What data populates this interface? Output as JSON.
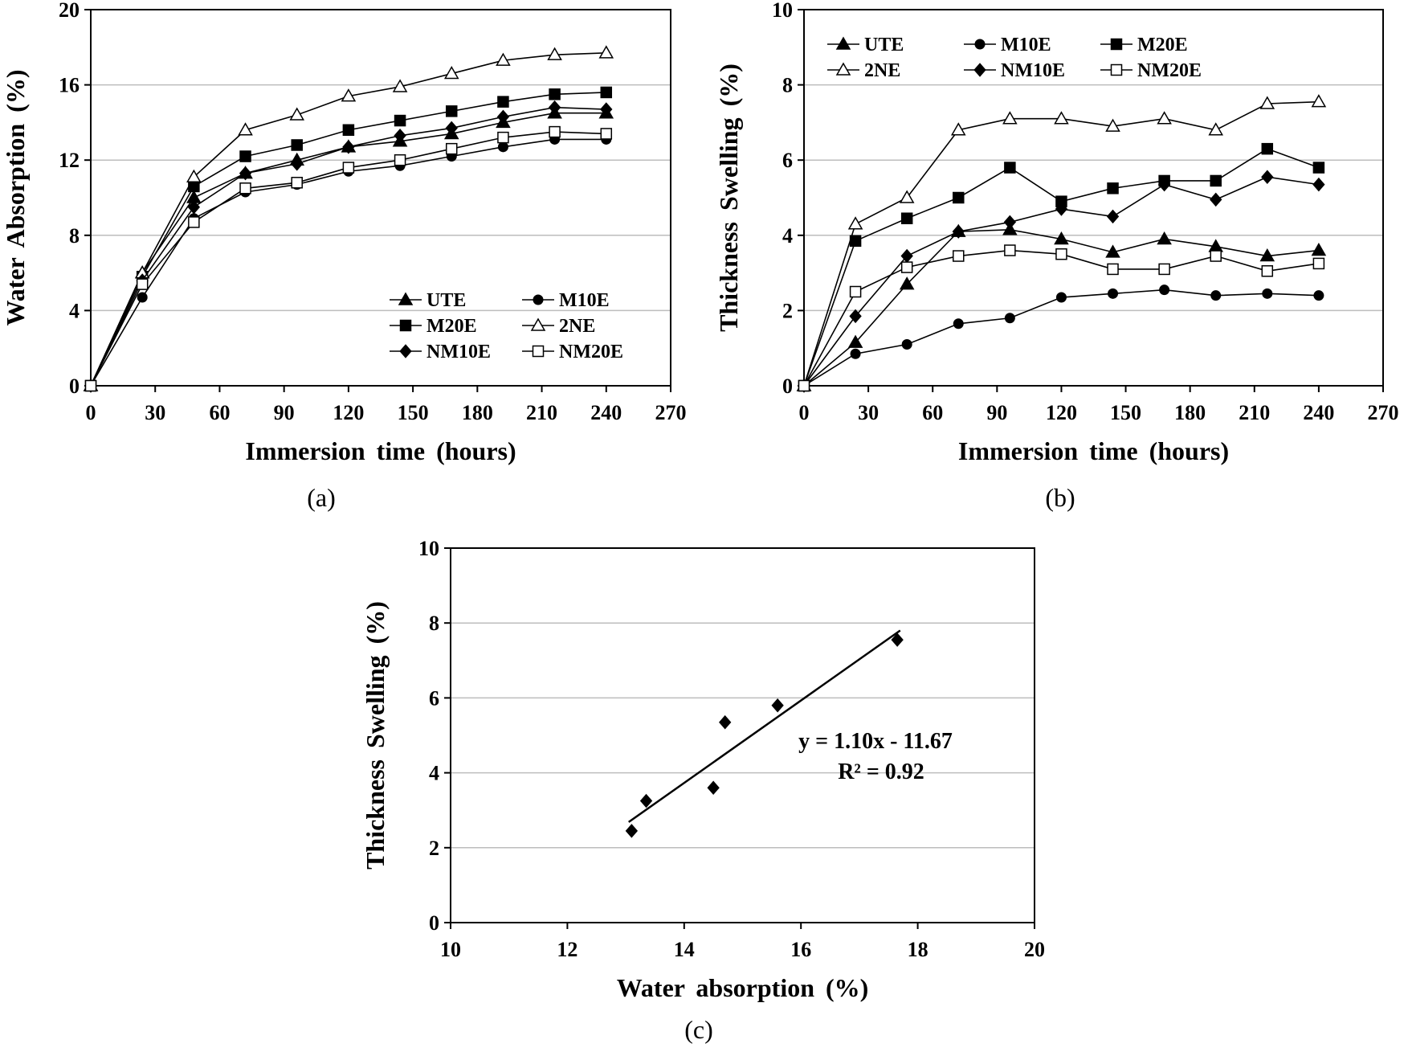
{
  "chart_data": [
    {
      "type": "line",
      "panel": "a",
      "caption": "(a)",
      "xlabel": "Immersion time (hours)",
      "ylabel": "Water Absorption (%)",
      "xlim": [
        0,
        270
      ],
      "ylim": [
        0,
        20
      ],
      "xticks": [
        0,
        30,
        60,
        90,
        120,
        150,
        180,
        210,
        240,
        270
      ],
      "yticks": [
        0,
        4,
        8,
        12,
        16,
        20
      ],
      "grid": "horizontal",
      "legend_position": "bottom-right",
      "x": [
        0,
        24,
        48,
        72,
        96,
        120,
        144,
        168,
        192,
        216,
        240
      ],
      "series": [
        {
          "name": "UTE",
          "marker": "triangle-filled",
          "values": [
            0,
            6.0,
            10.0,
            11.3,
            12.0,
            12.7,
            13.0,
            13.4,
            14.0,
            14.5,
            14.5
          ]
        },
        {
          "name": "M10E",
          "marker": "circle-filled",
          "values": [
            0,
            4.7,
            8.9,
            10.3,
            10.7,
            11.4,
            11.7,
            12.2,
            12.7,
            13.1,
            13.1
          ]
        },
        {
          "name": "M20E",
          "marker": "square-filled",
          "values": [
            0,
            5.8,
            10.6,
            12.2,
            12.8,
            13.6,
            14.1,
            14.6,
            15.1,
            15.5,
            15.6
          ]
        },
        {
          "name": "2NE",
          "marker": "triangle-open",
          "values": [
            0,
            6.0,
            11.1,
            13.6,
            14.4,
            15.4,
            15.9,
            16.6,
            17.3,
            17.6,
            17.7
          ]
        },
        {
          "name": "NM10E",
          "marker": "diamond-filled",
          "values": [
            0,
            5.6,
            9.5,
            11.3,
            11.8,
            12.7,
            13.3,
            13.7,
            14.3,
            14.8,
            14.7
          ]
        },
        {
          "name": "NM20E",
          "marker": "square-open",
          "values": [
            0,
            5.4,
            8.7,
            10.5,
            10.8,
            11.6,
            12.0,
            12.6,
            13.2,
            13.5,
            13.4
          ]
        }
      ]
    },
    {
      "type": "line",
      "panel": "b",
      "caption": "(b)",
      "xlabel": "Immersion time (hours)",
      "ylabel": "Thickness Swelling (%)",
      "xlim": [
        0,
        270
      ],
      "ylim": [
        0,
        10
      ],
      "xticks": [
        0,
        30,
        60,
        90,
        120,
        150,
        180,
        210,
        240,
        270
      ],
      "yticks": [
        0,
        2,
        4,
        6,
        8,
        10
      ],
      "grid": "horizontal",
      "legend_position": "top-left",
      "x": [
        0,
        24,
        48,
        72,
        96,
        120,
        144,
        168,
        192,
        216,
        240
      ],
      "series": [
        {
          "name": "UTE",
          "marker": "triangle-filled",
          "values": [
            0,
            1.15,
            2.7,
            4.1,
            4.15,
            3.9,
            3.55,
            3.9,
            3.7,
            3.45,
            3.6
          ]
        },
        {
          "name": "M10E",
          "marker": "circle-filled",
          "values": [
            0,
            0.85,
            1.1,
            1.65,
            1.8,
            2.35,
            2.45,
            2.55,
            2.4,
            2.45,
            2.4
          ]
        },
        {
          "name": "M20E",
          "marker": "square-filled",
          "values": [
            0,
            3.85,
            4.45,
            5.0,
            5.8,
            4.9,
            5.25,
            5.45,
            5.45,
            6.3,
            5.8
          ]
        },
        {
          "name": "2NE",
          "marker": "triangle-open",
          "values": [
            0,
            4.3,
            5.0,
            6.8,
            7.1,
            7.1,
            6.9,
            7.1,
            6.8,
            7.5,
            7.55
          ]
        },
        {
          "name": "NM10E",
          "marker": "diamond-filled",
          "values": [
            0,
            1.85,
            3.45,
            4.1,
            4.35,
            4.7,
            4.5,
            5.35,
            4.95,
            5.55,
            5.35
          ]
        },
        {
          "name": "NM20E",
          "marker": "square-open",
          "values": [
            0,
            2.5,
            3.15,
            3.45,
            3.6,
            3.5,
            3.1,
            3.1,
            3.45,
            3.05,
            3.25
          ]
        }
      ]
    },
    {
      "type": "scatter",
      "panel": "c",
      "caption": "(c)",
      "xlabel": "Water absorption (%)",
      "ylabel": "Thickness Swelling (%)",
      "xlim": [
        10,
        20
      ],
      "ylim": [
        0,
        10
      ],
      "xticks": [
        10,
        12,
        14,
        16,
        18,
        20
      ],
      "yticks": [
        0,
        2,
        4,
        6,
        8,
        10
      ],
      "grid": "horizontal",
      "marker": "diamond-filled",
      "points": [
        {
          "x": 13.1,
          "y": 2.45
        },
        {
          "x": 13.35,
          "y": 3.25
        },
        {
          "x": 14.5,
          "y": 3.6
        },
        {
          "x": 14.7,
          "y": 5.35
        },
        {
          "x": 15.6,
          "y": 5.8
        },
        {
          "x": 17.65,
          "y": 7.55
        }
      ],
      "trendline": {
        "x": [
          13.05,
          17.7
        ],
        "slope": 1.1,
        "intercept": -11.67
      },
      "annotations": {
        "equation": "y = 1.10x - 11.67",
        "r_squared": "R² = 0.92"
      }
    }
  ]
}
